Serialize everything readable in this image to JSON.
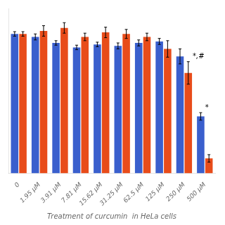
{
  "chart_data": {
    "type": "bar",
    "xlabel": "Treatment of curcumin  in HeLa cells",
    "categories": [
      "0",
      "1.95 μM",
      "3.91 μM",
      "7.81 μM",
      "15.62 μM",
      "31.25 μM",
      "62.5 μM",
      "125 μM",
      "250 μM",
      "500 μM"
    ],
    "series": [
      {
        "color": "#3a5fcd",
        "values": [
          93,
          91,
          87,
          84,
          86,
          85,
          87,
          88,
          78,
          38
        ],
        "errors": [
          1.5,
          2,
          1.5,
          1.5,
          1.5,
          2,
          2,
          2,
          5,
          2.5
        ],
        "annotations": [
          {
            "category": "500 μM",
            "text": "*"
          }
        ]
      },
      {
        "color": "#e84c1a",
        "values": [
          93,
          95,
          97,
          91,
          94,
          93,
          91,
          83,
          67,
          10
        ],
        "errors": [
          1.5,
          3.5,
          3.5,
          2.5,
          3.5,
          3,
          2.5,
          5.5,
          7.5,
          2.5
        ],
        "annotations": [
          {
            "category": "250 μM",
            "text": "*,#"
          }
        ]
      }
    ],
    "ylim": [
      0,
      110
    ],
    "tick_labels": "x",
    "grid": false
  }
}
